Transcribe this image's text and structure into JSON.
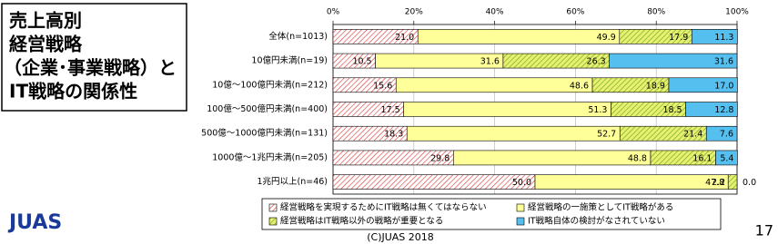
{
  "chart_data": {
    "type": "stacked-bar-horizontal",
    "title": [
      "売上高別",
      "経営戦略",
      "（企業･事業戦略）と",
      "IT戦略の関係性"
    ],
    "categories": [
      "全体(n=1013)",
      "10億円未満(n=19)",
      "10億～100億円未満(n=212)",
      "100億～500億円未満(n=400)",
      "500億～1000億円未満(n=131)",
      "1000億～1兆円未満(n=205)",
      "1兆円以上(n=46)"
    ],
    "series": [
      {
        "name": "経営戦略を実現するためにIT戦略は無くてはならない",
        "color": "#e03030",
        "pattern": true,
        "values": [
          21.0,
          10.5,
          15.6,
          17.5,
          18.3,
          29.8,
          50.0
        ],
        "value_labels": [
          "21.0",
          "10.5",
          "15.6",
          "17.5",
          "18.3",
          "29.8",
          "50.0"
        ]
      },
      {
        "name": "経営戦略の一施策としてIT戦略がある",
        "color": "#ffff99",
        "pattern": false,
        "values": [
          49.9,
          31.6,
          48.6,
          51.3,
          52.7,
          48.8,
          47.8
        ],
        "value_labels": [
          "49.9",
          "31.6",
          "48.6",
          "51.3",
          "52.7",
          "48.8",
          "47.8"
        ]
      },
      {
        "name": "経営戦略はIT戦略以外の戦略が重要となる",
        "color": "#66a020",
        "pattern": true,
        "values": [
          17.9,
          26.3,
          18.9,
          18.5,
          21.4,
          16.1,
          2.2
        ],
        "value_labels": [
          "17.9",
          "26.3",
          "18.9",
          "18.5",
          "21.4",
          "16.1",
          "2.2"
        ]
      },
      {
        "name": "IT戦略自体の検討がなされていない",
        "color": "#55c0f0",
        "pattern": false,
        "values": [
          11.3,
          31.6,
          17.0,
          12.8,
          7.6,
          5.4,
          0.0
        ],
        "value_labels": [
          "11.3",
          "31.6",
          "17.0",
          "12.8",
          "7.6",
          "5.4",
          "0.0"
        ]
      }
    ],
    "xlim": [
      0,
      100
    ],
    "xticks": [
      {
        "value": 0,
        "label": "0%"
      },
      {
        "value": 20,
        "label": "20%"
      },
      {
        "value": 40,
        "label": "40%"
      },
      {
        "value": 60,
        "label": "60%"
      },
      {
        "value": 80,
        "label": "80%"
      },
      {
        "value": 100,
        "label": "100%"
      }
    ],
    "grid": true
  },
  "footer": {
    "logo": "JUAS",
    "copyright": "(C)JUAS 2018",
    "page_number": "17"
  }
}
